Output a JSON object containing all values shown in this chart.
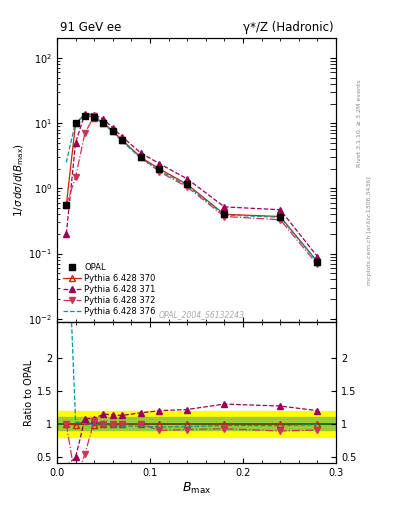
{
  "title_left": "91 GeV ee",
  "title_right": "γ*/Z (Hadronic)",
  "ylabel_main": "1/σ dσ/d(B_max)",
  "ylabel_ratio": "Ratio to OPAL",
  "xlabel": "B_max",
  "right_label_top": "Rivet 3.1.10, ≥ 3.2M events",
  "right_label_bottom": "mcplots.cern.ch [arXiv:1306.3436]",
  "watermark": "OPAL_2004_S6132243",
  "opal_x": [
    0.01,
    0.02,
    0.03,
    0.04,
    0.05,
    0.06,
    0.07,
    0.09,
    0.11,
    0.14,
    0.18,
    0.24,
    0.28
  ],
  "opal_y": [
    0.55,
    10.2,
    13.0,
    12.5,
    10.0,
    7.5,
    5.5,
    3.0,
    2.0,
    1.15,
    0.4,
    0.37,
    0.075
  ],
  "py370_x": [
    0.01,
    0.02,
    0.03,
    0.04,
    0.05,
    0.06,
    0.07,
    0.09,
    0.11,
    0.14,
    0.18,
    0.24,
    0.28
  ],
  "py370_y": [
    0.55,
    10.0,
    13.5,
    12.2,
    10.0,
    7.5,
    5.5,
    3.0,
    2.0,
    1.15,
    0.4,
    0.37,
    0.075
  ],
  "py371_x": [
    0.01,
    0.02,
    0.03,
    0.04,
    0.05,
    0.06,
    0.07,
    0.09,
    0.11,
    0.14,
    0.18,
    0.24,
    0.28
  ],
  "py371_y": [
    0.2,
    5.0,
    14.0,
    13.5,
    11.5,
    8.5,
    6.2,
    3.5,
    2.4,
    1.4,
    0.52,
    0.47,
    0.09
  ],
  "py372_x": [
    0.01,
    0.02,
    0.03,
    0.04,
    0.05,
    0.06,
    0.07,
    0.09,
    0.11,
    0.14,
    0.18,
    0.24,
    0.28
  ],
  "py372_y": [
    0.55,
    1.5,
    7.0,
    13.0,
    10.0,
    7.5,
    5.5,
    3.0,
    1.8,
    1.05,
    0.37,
    0.33,
    0.068
  ],
  "py376_x": [
    0.01,
    0.02,
    0.03,
    0.04,
    0.05,
    0.06,
    0.07,
    0.09,
    0.11,
    0.14,
    0.18,
    0.24,
    0.28
  ],
  "py376_y": [
    2.5,
    10.5,
    13.0,
    12.3,
    9.8,
    7.3,
    5.3,
    2.9,
    1.9,
    1.1,
    0.39,
    0.36,
    0.074
  ],
  "opal_color": "#000000",
  "py370_color": "#cc2200",
  "py371_color": "#990055",
  "py372_color": "#cc3355",
  "py376_color": "#009999",
  "ylim_main": [
    0.009,
    200
  ],
  "ylim_ratio": [
    0.4,
    2.55
  ],
  "xlim": [
    0.0,
    0.3
  ],
  "green_band_lo": 0.9,
  "green_band_hi": 1.1,
  "yellow_band_lo": 0.8,
  "yellow_band_hi": 1.2,
  "ratio_yticks": [
    0.5,
    1.0,
    1.5,
    2.0
  ],
  "ratio_ytick_labels": [
    "0.5",
    "1",
    "1.5",
    "2"
  ]
}
